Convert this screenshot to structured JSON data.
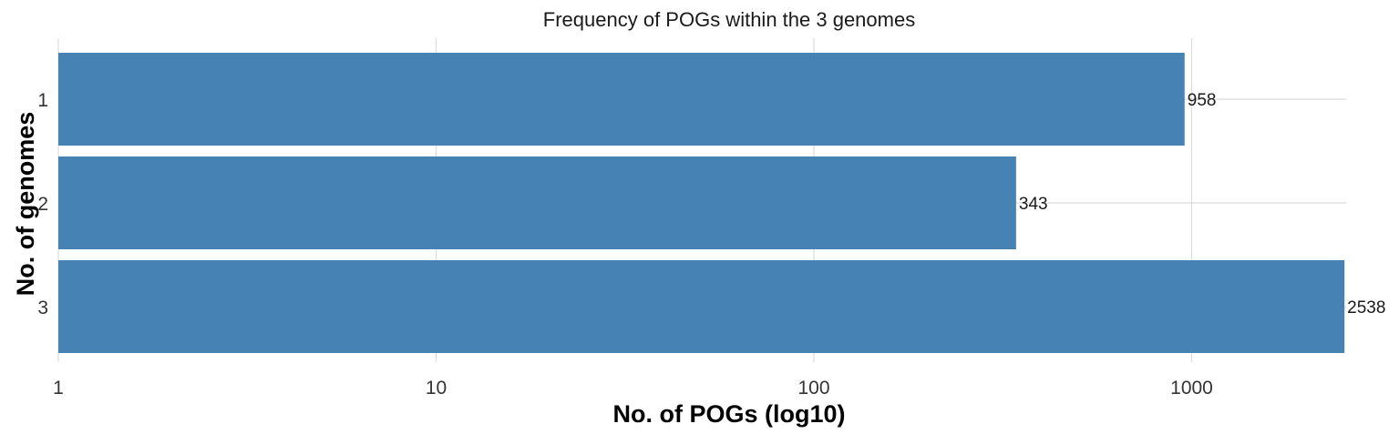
{
  "colors": {
    "bar": "#4682b4",
    "grid": "#dcdcdc",
    "background": "#ffffff"
  },
  "chart_data": {
    "type": "bar",
    "orientation": "horizontal",
    "title": "Frequency of POGs within the 3 genomes",
    "xlabel": "No. of POGs (log10)",
    "ylabel": "No. of genomes",
    "x_scale": "log10",
    "xlim": [
      1,
      2800
    ],
    "x_ticks": [
      1,
      10,
      100,
      1000
    ],
    "x_tick_labels": [
      "1",
      "10",
      "100",
      "1000"
    ],
    "categories": [
      "1",
      "2",
      "3"
    ],
    "values": [
      958,
      343,
      2538
    ],
    "data_labels": [
      "958",
      "343",
      "2538"
    ],
    "grid": true,
    "legend": "none"
  }
}
